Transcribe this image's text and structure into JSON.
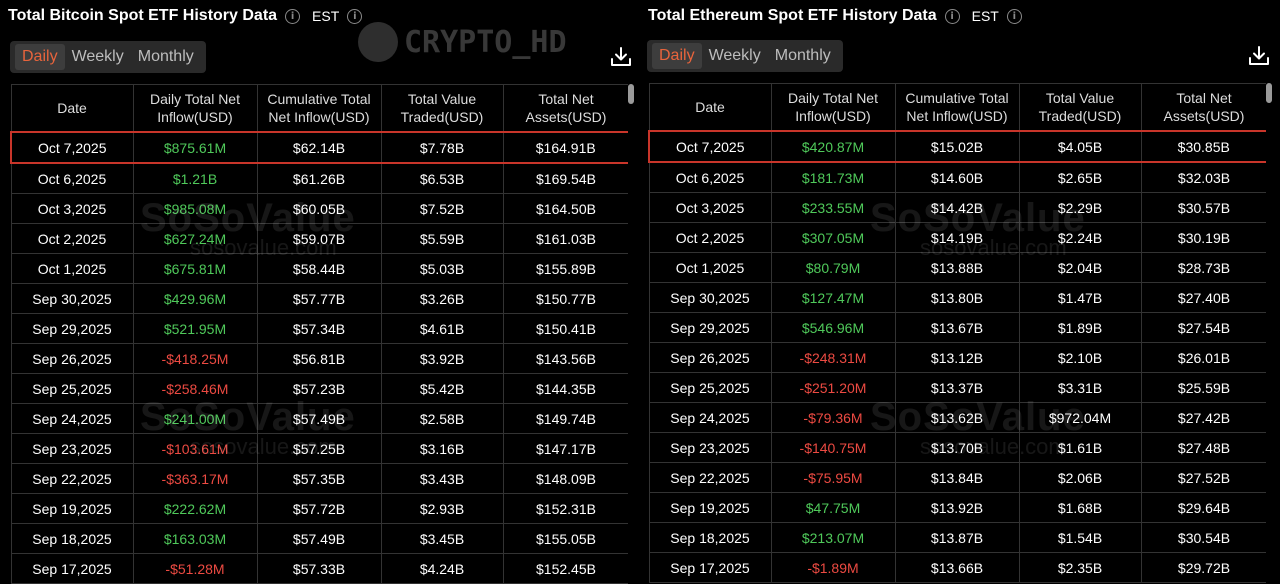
{
  "panels": [
    {
      "title": "Total Bitcoin Spot ETF History Data",
      "timezone": "EST",
      "tabs": [
        "Daily",
        "Weekly",
        "Monthly"
      ],
      "active_tab": "Daily",
      "columns": [
        "Date",
        "Daily Total Net Inflow(USD)",
        "Cumulative Total Net Inflow(USD)",
        "Total Value Traded(USD)",
        "Total Net Assets(USD)"
      ],
      "rows": [
        [
          "Oct 7,2025",
          "$875.61M",
          "$62.14B",
          "$7.78B",
          "$164.91B"
        ],
        [
          "Oct 6,2025",
          "$1.21B",
          "$61.26B",
          "$6.53B",
          "$169.54B"
        ],
        [
          "Oct 3,2025",
          "$985.08M",
          "$60.05B",
          "$7.52B",
          "$164.50B"
        ],
        [
          "Oct 2,2025",
          "$627.24M",
          "$59.07B",
          "$5.59B",
          "$161.03B"
        ],
        [
          "Oct 1,2025",
          "$675.81M",
          "$58.44B",
          "$5.03B",
          "$155.89B"
        ],
        [
          "Sep 30,2025",
          "$429.96M",
          "$57.77B",
          "$3.26B",
          "$150.77B"
        ],
        [
          "Sep 29,2025",
          "$521.95M",
          "$57.34B",
          "$4.61B",
          "$150.41B"
        ],
        [
          "Sep 26,2025",
          "-$418.25M",
          "$56.81B",
          "$3.92B",
          "$143.56B"
        ],
        [
          "Sep 25,2025",
          "-$258.46M",
          "$57.23B",
          "$5.42B",
          "$144.35B"
        ],
        [
          "Sep 24,2025",
          "$241.00M",
          "$57.49B",
          "$2.58B",
          "$149.74B"
        ],
        [
          "Sep 23,2025",
          "-$103.61M",
          "$57.25B",
          "$3.16B",
          "$147.17B"
        ],
        [
          "Sep 22,2025",
          "-$363.17M",
          "$57.35B",
          "$3.43B",
          "$148.09B"
        ],
        [
          "Sep 19,2025",
          "$222.62M",
          "$57.72B",
          "$2.93B",
          "$152.31B"
        ],
        [
          "Sep 18,2025",
          "$163.03M",
          "$57.49B",
          "$3.45B",
          "$155.05B"
        ],
        [
          "Sep 17,2025",
          "-$51.28M",
          "$57.33B",
          "$4.24B",
          "$152.45B"
        ]
      ]
    },
    {
      "title": "Total Ethereum Spot ETF History Data",
      "timezone": "EST",
      "tabs": [
        "Daily",
        "Weekly",
        "Monthly"
      ],
      "active_tab": "Daily",
      "columns": [
        "Date",
        "Daily Total Net Inflow(USD)",
        "Cumulative Total Net Inflow(USD)",
        "Total Value Traded(USD)",
        "Total Net Assets(USD)"
      ],
      "rows": [
        [
          "Oct 7,2025",
          "$420.87M",
          "$15.02B",
          "$4.05B",
          "$30.85B"
        ],
        [
          "Oct 6,2025",
          "$181.73M",
          "$14.60B",
          "$2.65B",
          "$32.03B"
        ],
        [
          "Oct 3,2025",
          "$233.55M",
          "$14.42B",
          "$2.29B",
          "$30.57B"
        ],
        [
          "Oct 2,2025",
          "$307.05M",
          "$14.19B",
          "$2.24B",
          "$30.19B"
        ],
        [
          "Oct 1,2025",
          "$80.79M",
          "$13.88B",
          "$2.04B",
          "$28.73B"
        ],
        [
          "Sep 30,2025",
          "$127.47M",
          "$13.80B",
          "$1.47B",
          "$27.40B"
        ],
        [
          "Sep 29,2025",
          "$546.96M",
          "$13.67B",
          "$1.89B",
          "$27.54B"
        ],
        [
          "Sep 26,2025",
          "-$248.31M",
          "$13.12B",
          "$2.10B",
          "$26.01B"
        ],
        [
          "Sep 25,2025",
          "-$251.20M",
          "$13.37B",
          "$3.31B",
          "$25.59B"
        ],
        [
          "Sep 24,2025",
          "-$79.36M",
          "$13.62B",
          "$972.04M",
          "$27.42B"
        ],
        [
          "Sep 23,2025",
          "-$140.75M",
          "$13.70B",
          "$1.61B",
          "$27.48B"
        ],
        [
          "Sep 22,2025",
          "-$75.95M",
          "$13.84B",
          "$2.06B",
          "$27.52B"
        ],
        [
          "Sep 19,2025",
          "$47.75M",
          "$13.92B",
          "$1.68B",
          "$29.64B"
        ],
        [
          "Sep 18,2025",
          "$213.07M",
          "$13.87B",
          "$1.54B",
          "$30.54B"
        ],
        [
          "Sep 17,2025",
          "-$1.89M",
          "$13.66B",
          "$2.35B",
          "$29.72B"
        ]
      ]
    }
  ],
  "watermarks": {
    "top": "CRYPTO_HD",
    "brand": "SoSoValue",
    "site": "sosovalue.com"
  },
  "colors": {
    "positive": "#4fc95a",
    "negative": "#ec4a42",
    "accent": "#e8643c",
    "highlight_border": "#c9352a"
  }
}
